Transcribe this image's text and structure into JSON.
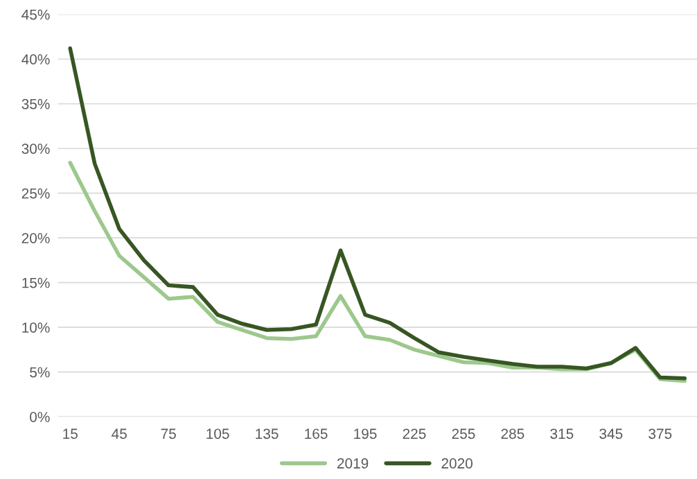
{
  "chart_data": {
    "type": "line",
    "categories": [
      "15",
      null,
      "45",
      null,
      "75",
      null,
      "105",
      null,
      "135",
      null,
      "165",
      null,
      "195",
      null,
      "225",
      null,
      "255",
      null,
      "285",
      null,
      "315",
      null,
      "345",
      null,
      "375",
      null
    ],
    "series": [
      {
        "name": "2019",
        "color": "#9dc88d",
        "values": [
          28.4,
          23.0,
          18.0,
          15.6,
          13.2,
          13.4,
          10.6,
          9.7,
          8.8,
          8.7,
          9.0,
          13.5,
          9.0,
          8.6,
          7.5,
          6.8,
          6.1,
          6.0,
          5.5,
          5.5,
          5.3,
          5.3,
          6.0,
          7.5,
          4.2,
          4.0
        ]
      },
      {
        "name": "2020",
        "color": "#375623",
        "values": [
          41.2,
          28.3,
          21.0,
          17.5,
          14.7,
          14.5,
          11.4,
          10.4,
          9.7,
          9.8,
          10.3,
          18.6,
          11.4,
          10.5,
          8.8,
          7.2,
          6.7,
          6.3,
          5.9,
          5.6,
          5.6,
          5.4,
          6.0,
          7.7,
          4.4,
          4.3
        ]
      }
    ],
    "ylim": [
      0,
      45
    ],
    "yticks": [
      {
        "value": 0,
        "label": "0%"
      },
      {
        "value": 5,
        "label": "5%"
      },
      {
        "value": 10,
        "label": "10%"
      },
      {
        "value": 15,
        "label": "15%"
      },
      {
        "value": 20,
        "label": "20%"
      },
      {
        "value": 25,
        "label": "25%"
      },
      {
        "value": 30,
        "label": "30%"
      },
      {
        "value": 35,
        "label": "35%"
      },
      {
        "value": 40,
        "label": "40%"
      },
      {
        "value": 45,
        "label": "45%"
      }
    ],
    "grid": "y",
    "legend": "bottom",
    "marker": "none",
    "line_style": "solid"
  }
}
